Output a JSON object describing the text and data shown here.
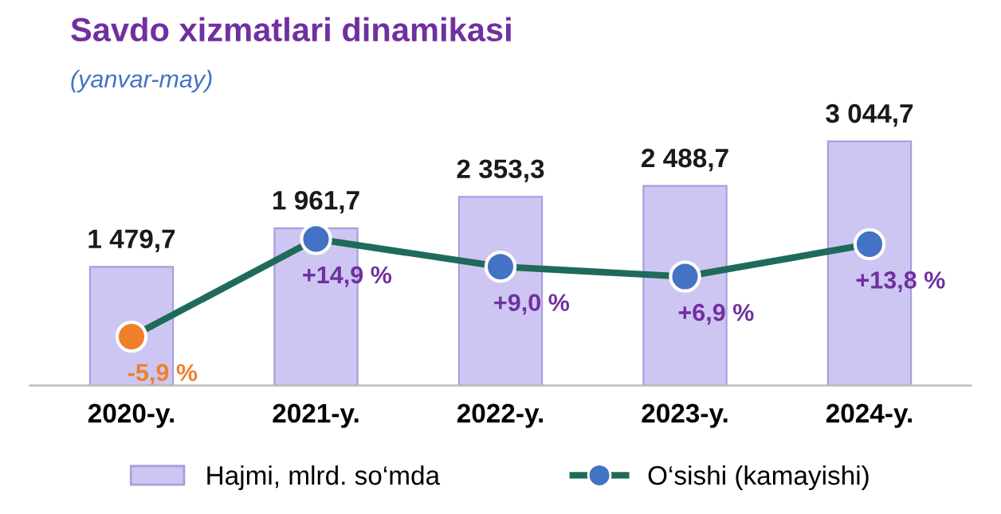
{
  "chart_data": {
    "type": "bar",
    "title": "Savdo xizmatlari dinamikasi",
    "subtitle": "(yanvar-may)",
    "categories": [
      "2020-y.",
      "2021-y.",
      "2022-y.",
      "2023-y.",
      "2024-y."
    ],
    "series": [
      {
        "name": "Hajmi, mlrd. so‘mda",
        "color": "#cdc6f2",
        "values": [
          1479.7,
          1961.7,
          2353.3,
          2488.7,
          3044.7
        ],
        "value_labels": [
          "1 479,7",
          "1 961,7",
          "2 353,3",
          "2 488,7",
          "3 044,7"
        ]
      },
      {
        "name": "O‘sishi (kamayishi)",
        "type": "line",
        "axis": "y2",
        "color": "#1f6b5b",
        "colors": [
          "#f07f2a",
          "#4472c4",
          "#4472c4",
          "#4472c4",
          "#4472c4"
        ],
        "values": [
          -5.9,
          14.9,
          9.0,
          6.9,
          13.8
        ],
        "value_labels": [
          "-5,9 %",
          "+14,9 %",
          "+9,0 %",
          "+6,9 %",
          "+13,8 %"
        ]
      }
    ],
    "marker": "circle",
    "grid": false,
    "legend": "bottom"
  }
}
